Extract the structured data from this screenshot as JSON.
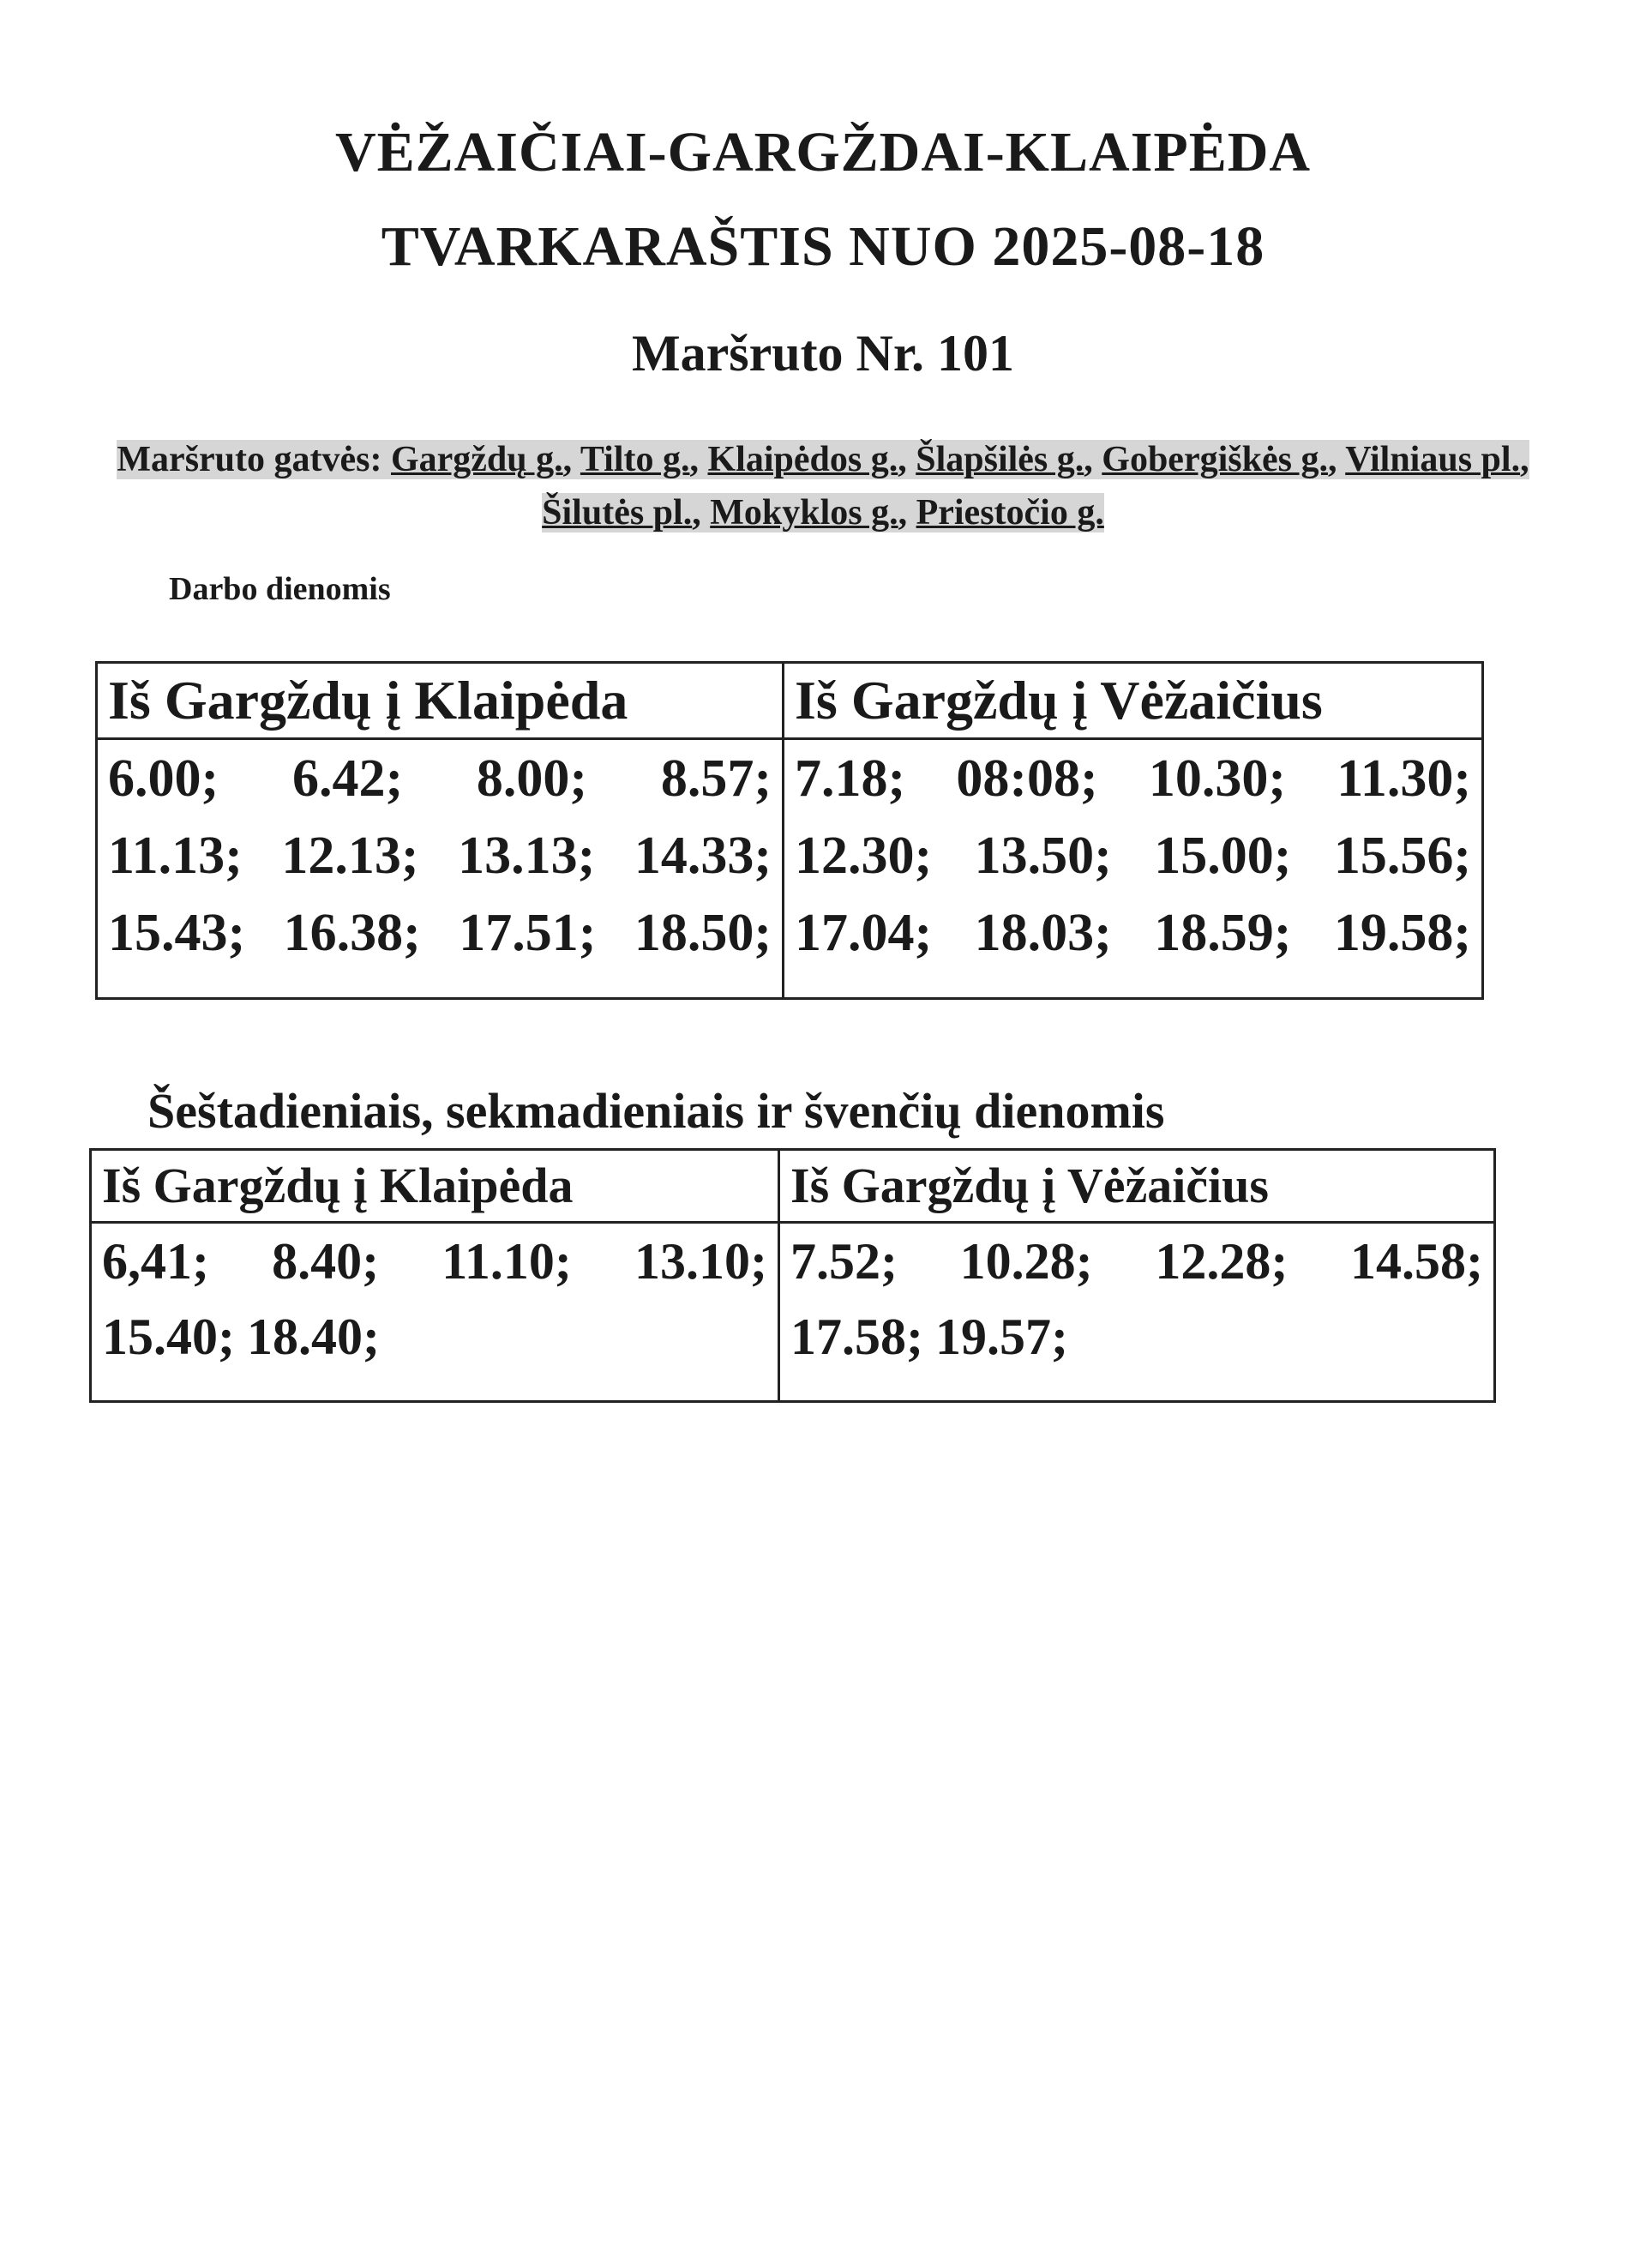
{
  "header": {
    "title_line1": "VĖŽAIČIAI-GARGŽDAI-KLAIPĖDA",
    "title_line2": "TVARKARAŠTIS NUO 2025-08-18",
    "route": "Maršruto Nr. 101"
  },
  "streets": {
    "label": "Maršruto gatvės:",
    "items": [
      "Gargždų g.",
      "Tilto g.",
      "Klaipėdos g.",
      "Šlapšilės g.",
      "Gobergiškės g.",
      "Vilniaus pl.",
      "Šilutės pl.",
      "Mokyklos g.",
      "Priestočio g."
    ]
  },
  "weekdays": {
    "heading": "Darbo dienomis",
    "columns": [
      "Iš Gargždų į Klaipėda",
      "Iš Gargždų į Vėžaičius"
    ],
    "col1_rows": [
      [
        "6.00;",
        "6.42;",
        "8.00;",
        "8.57;"
      ],
      [
        "11.13;",
        "12.13;",
        "13.13;",
        "14.33;"
      ],
      [
        "15.43;",
        "16.38;",
        "17.51;",
        "18.50;"
      ]
    ],
    "col2_rows": [
      [
        "7.18;",
        "08:08;",
        "10.30;",
        "11.30;"
      ],
      [
        "12.30;",
        "13.50;",
        "15.00;",
        "15.56;"
      ],
      [
        "17.04;",
        "18.03;",
        "18.59;",
        "19.58;"
      ]
    ]
  },
  "weekends": {
    "heading": "Šeštadieniais, sekmadieniais ir švenčių dienomis",
    "columns": [
      "Iš Gargždų į Klaipėda",
      "Iš Gargždų į Vėžaičius"
    ],
    "col1_rows": [
      [
        "6,41;",
        "8.40;",
        "11.10;",
        "13.10;"
      ],
      [
        "15.40;",
        "18.40;"
      ]
    ],
    "col2_rows": [
      [
        "7.52;",
        "10.28;",
        "12.28;",
        "14.58;"
      ],
      [
        "17.58;",
        "19.57;"
      ]
    ]
  }
}
